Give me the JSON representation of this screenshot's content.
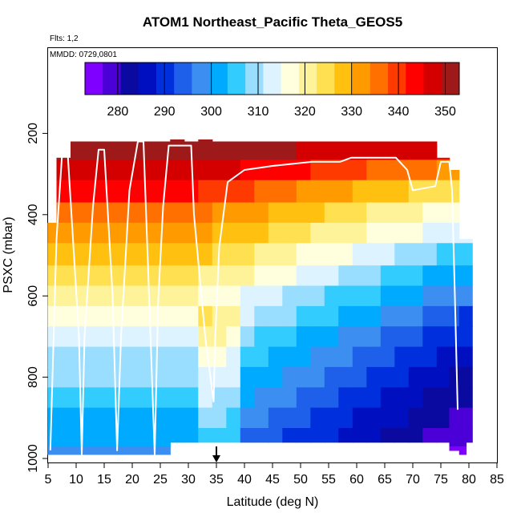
{
  "chart_data": {
    "type": "heatmap",
    "title": "ATOM1 Northeast_Pacific Theta_GEOS5",
    "annotations": {
      "flights": "Flts: 1,2",
      "dates": "MMDD: 0729,0801"
    },
    "xlabel": "Latitude (deg N)",
    "ylabel": "PSXC (mbar)",
    "xlim": [
      5,
      85
    ],
    "ylim": [
      1000,
      0
    ],
    "x_ticks": [
      "5",
      "10",
      "15",
      "20",
      "25",
      "30",
      "35",
      "40",
      "45",
      "50",
      "55",
      "60",
      "65",
      "70",
      "75",
      "80",
      "85"
    ],
    "y_ticks": [
      "200",
      "400",
      "600",
      "800",
      "1000"
    ],
    "colorbar": {
      "range": [
        273,
        353
      ],
      "tick_labels": [
        "280",
        "290",
        "300",
        "310",
        "320",
        "330",
        "340",
        "350"
      ],
      "colors": [
        "#8000ff",
        "#4a00d6",
        "#0a0aa0",
        "#0010c0",
        "#0030dd",
        "#1f60ea",
        "#3c8ff0",
        "#00aaff",
        "#33ccff",
        "#99ddff",
        "#ddf3ff",
        "#ffffdd",
        "#fff39a",
        "#ffe050",
        "#ffc010",
        "#ff9a00",
        "#ff7000",
        "#ff3a00",
        "#ff0000",
        "#d40000",
        "#9e1a1a"
      ]
    },
    "arrow_marker_x": 35,
    "field": {
      "columns_x": [
        5.5,
        7.5,
        10.5,
        13,
        15.5,
        18,
        20.5,
        23,
        25.5,
        28,
        30.5,
        33,
        35.5,
        38,
        40.5,
        43,
        45.5,
        48,
        50.5,
        53,
        55.5,
        58,
        60.5,
        63,
        65.5,
        68,
        70.5,
        73,
        75.5,
        77.5,
        79,
        80
      ],
      "column_ranges": [
        [
          420,
          990
        ],
        [
          260,
          990
        ],
        [
          220,
          990
        ],
        [
          220,
          990
        ],
        [
          220,
          990
        ],
        [
          220,
          990
        ],
        [
          220,
          990
        ],
        [
          220,
          990
        ],
        [
          220,
          990
        ],
        [
          160,
          960
        ],
        [
          220,
          960
        ],
        [
          160,
          960
        ],
        [
          220,
          960
        ],
        [
          220,
          960
        ],
        [
          220,
          960
        ],
        [
          220,
          960
        ],
        [
          220,
          960
        ],
        [
          220,
          960
        ],
        [
          220,
          960
        ],
        [
          220,
          960
        ],
        [
          220,
          960
        ],
        [
          220,
          960
        ],
        [
          220,
          960
        ],
        [
          220,
          960
        ],
        [
          220,
          960
        ],
        [
          220,
          960
        ],
        [
          220,
          960
        ],
        [
          220,
          960
        ],
        [
          260,
          960
        ],
        [
          290,
          980
        ],
        [
          460,
          990
        ],
        [
          460,
          960
        ]
      ],
      "levels_mbar": [
        240,
        290,
        340,
        400,
        440,
        500,
        550,
        600,
        650,
        700,
        750,
        800,
        850,
        900,
        950,
        990
      ],
      "theta_profile_south": [
        352,
        348,
        342,
        336,
        332,
        328,
        324,
        320,
        317,
        314,
        311,
        308,
        305,
        302,
        300,
        298
      ],
      "theta_profile_north": [
        345,
        333,
        323,
        316,
        312,
        306,
        300,
        296,
        292,
        289,
        286,
        284,
        282,
        280,
        278,
        275
      ]
    },
    "flight_track_mbar": [
      [
        5.4,
        980
      ],
      [
        6.5,
        460
      ],
      [
        7.5,
        250
      ],
      [
        8.5,
        250
      ],
      [
        10.5,
        700
      ],
      [
        11,
        990
      ],
      [
        11.5,
        700
      ],
      [
        13,
        380
      ],
      [
        14,
        240
      ],
      [
        15,
        240
      ],
      [
        16.5,
        600
      ],
      [
        17.3,
        980
      ],
      [
        18,
        700
      ],
      [
        19.5,
        340
      ],
      [
        21,
        220
      ],
      [
        22,
        220
      ],
      [
        23,
        600
      ],
      [
        24,
        990
      ],
      [
        24.6,
        620
      ],
      [
        25.5,
        380
      ],
      [
        26.5,
        230
      ],
      [
        30.5,
        230
      ],
      [
        31,
        400
      ],
      [
        33,
        700
      ],
      [
        34.5,
        860
      ],
      [
        34.8,
        700
      ],
      [
        35.5,
        480
      ],
      [
        37,
        320
      ],
      [
        40,
        290
      ],
      [
        45,
        280
      ],
      [
        52,
        270
      ],
      [
        57,
        270
      ],
      [
        59,
        260
      ],
      [
        67,
        260
      ],
      [
        69,
        290
      ],
      [
        70,
        340
      ],
      [
        74,
        330
      ],
      [
        75,
        270
      ],
      [
        76.5,
        270
      ],
      [
        77,
        340
      ],
      [
        77.5,
        600
      ],
      [
        78,
        880
      ]
    ]
  }
}
